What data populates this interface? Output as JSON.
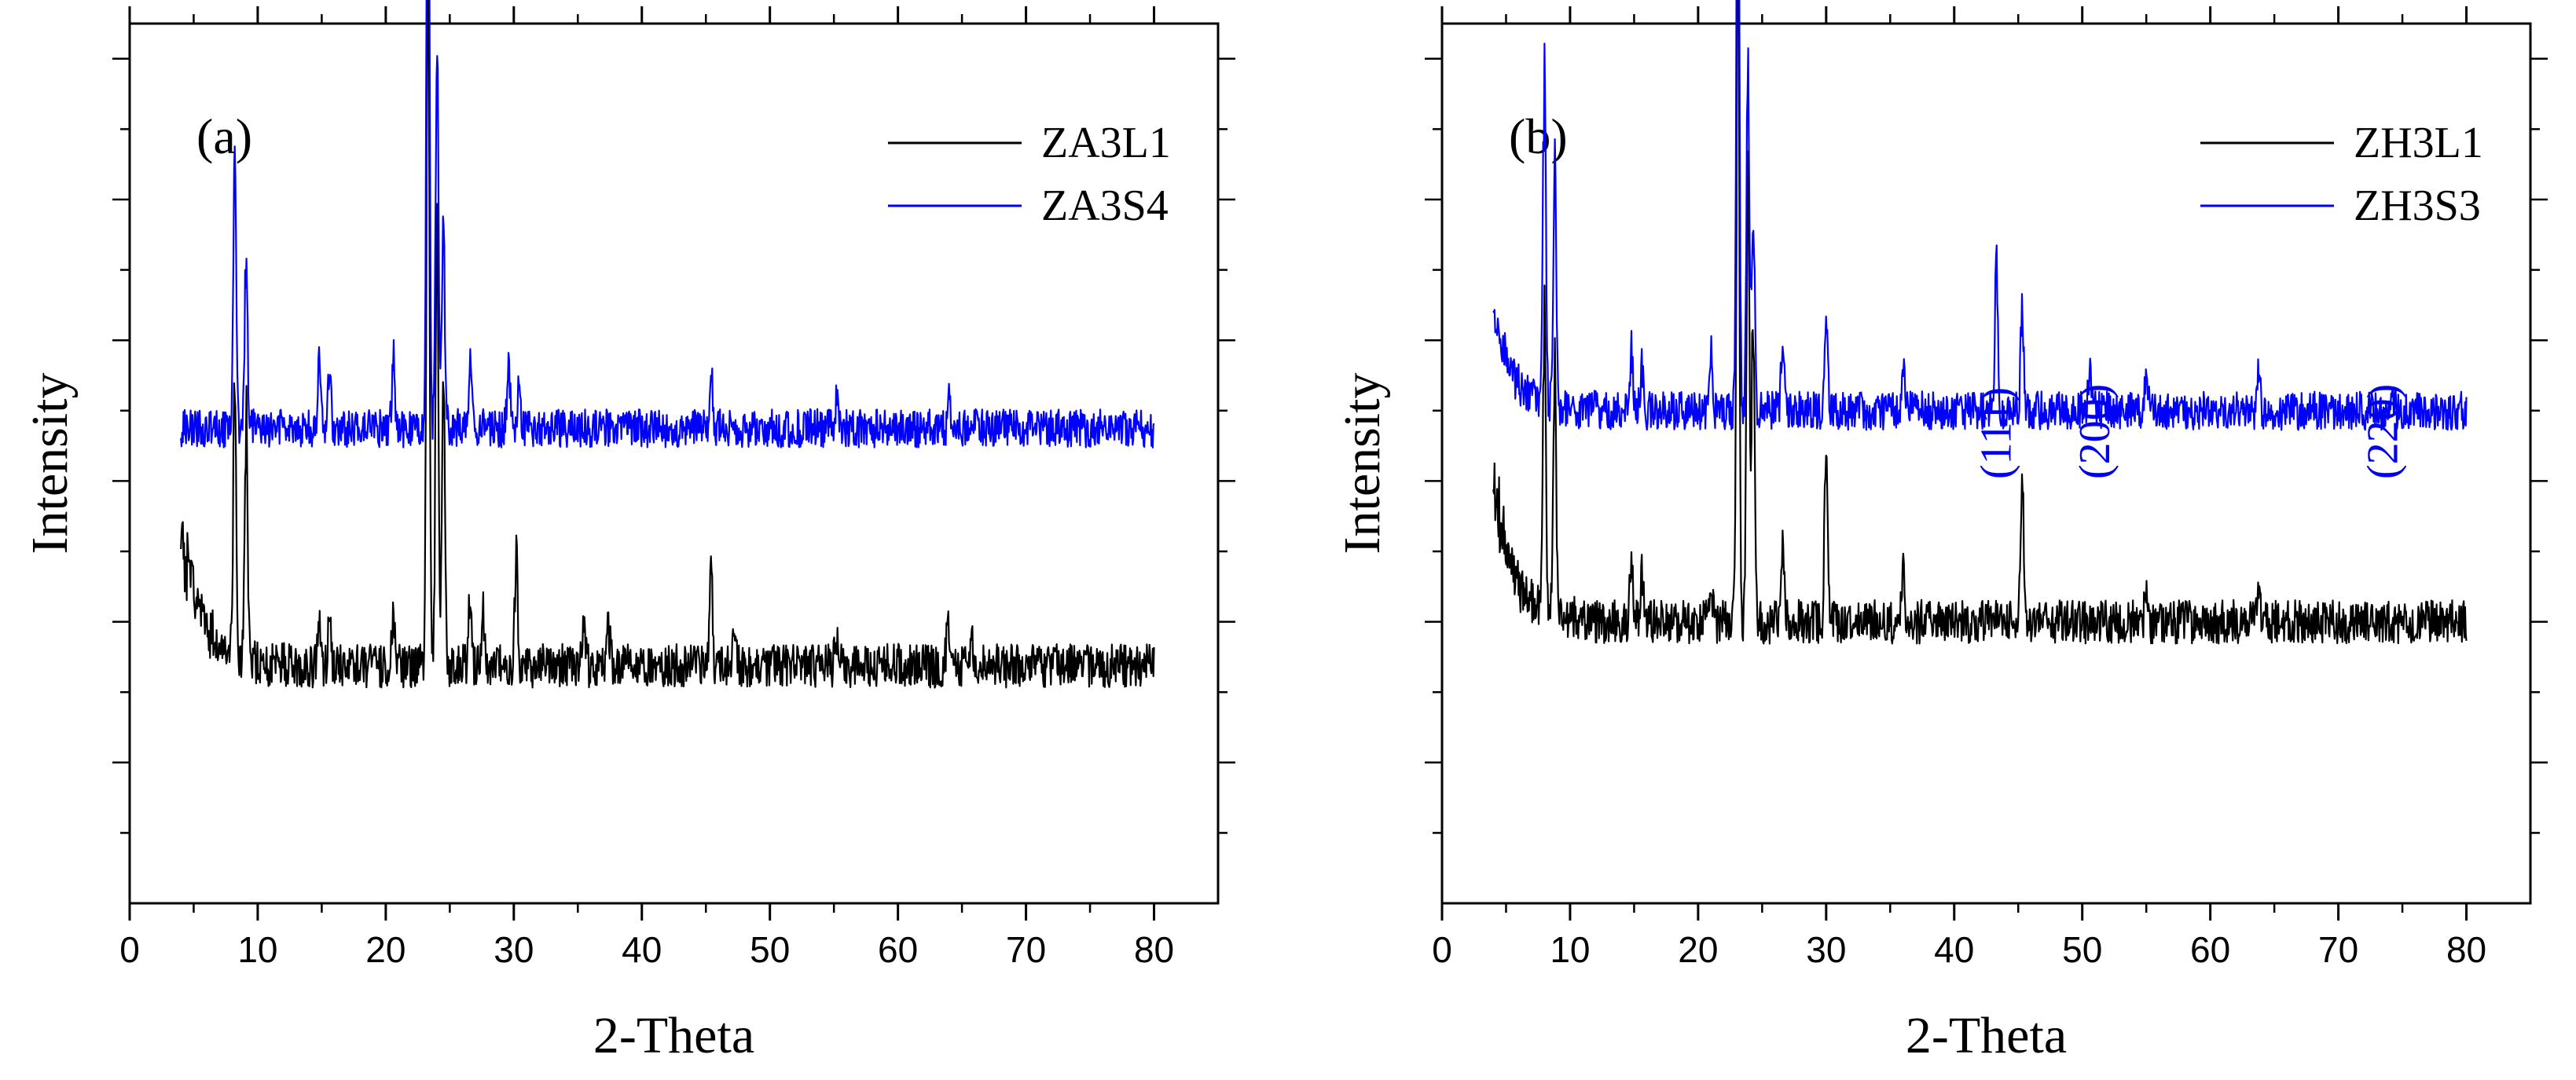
{
  "chart_data": [
    {
      "type": "line",
      "panel_label": "(a)",
      "xlabel": "2-Theta",
      "ylabel": "Intensity",
      "xlim": [
        0,
        85
      ],
      "xticks": [
        "0",
        "10",
        "20",
        "30",
        "40",
        "50",
        "60",
        "70",
        "80"
      ],
      "series": [
        {
          "name": "ZA3L1",
          "color": "#000000",
          "baseline": 0.27,
          "noise": 0.025,
          "start_rise": 0.16,
          "seed": 11,
          "peaks": [
            [
              8.2,
              0.3
            ],
            [
              9.1,
              0.27
            ],
            [
              14.8,
              0.05
            ],
            [
              15.6,
              0.05
            ],
            [
              20.6,
              0.06
            ],
            [
              23.3,
              0.9
            ],
            [
              24.0,
              0.48
            ],
            [
              24.5,
              0.33
            ],
            [
              26.6,
              0.08
            ],
            [
              27.6,
              0.06
            ],
            [
              30.2,
              0.12
            ],
            [
              35.5,
              0.05
            ],
            [
              37.4,
              0.04
            ],
            [
              45.4,
              0.13
            ],
            [
              47.2,
              0.03
            ],
            [
              55.2,
              0.04
            ],
            [
              63.9,
              0.05
            ],
            [
              65.8,
              0.03
            ]
          ]
        },
        {
          "name": "ZA3S4",
          "color": "#0000ff",
          "baseline": 0.54,
          "noise": 0.022,
          "start_rise": 0.0,
          "seed": 29,
          "peaks": [
            [
              8.2,
              0.29
            ],
            [
              9.1,
              0.19
            ],
            [
              14.8,
              0.08
            ],
            [
              15.6,
              0.06
            ],
            [
              20.6,
              0.07
            ],
            [
              23.3,
              0.79
            ],
            [
              24.0,
              0.43
            ],
            [
              24.5,
              0.24
            ],
            [
              26.6,
              0.08
            ],
            [
              29.6,
              0.08
            ],
            [
              30.4,
              0.05
            ],
            [
              45.4,
              0.07
            ],
            [
              55.2,
              0.03
            ],
            [
              64.0,
              0.03
            ]
          ]
        }
      ]
    },
    {
      "type": "line",
      "panel_label": "(b)",
      "xlabel": "2-Theta",
      "ylabel": "Intensity",
      "xlim": [
        0,
        85
      ],
      "xticks": [
        "0",
        "10",
        "20",
        "30",
        "40",
        "50",
        "60",
        "70",
        "80"
      ],
      "series": [
        {
          "name": "ZH3L1",
          "color": "#000000",
          "baseline": 0.32,
          "noise": 0.025,
          "start_rise": 0.16,
          "seed": 47,
          "peaks": [
            [
              8.0,
              0.33
            ],
            [
              8.8,
              0.31
            ],
            [
              14.8,
              0.08
            ],
            [
              15.6,
              0.06
            ],
            [
              21.0,
              0.05
            ],
            [
              23.1,
              0.76
            ],
            [
              23.9,
              0.53
            ],
            [
              24.3,
              0.35
            ],
            [
              26.6,
              0.1
            ],
            [
              30.0,
              0.22
            ],
            [
              36.0,
              0.06
            ],
            [
              45.3,
              0.17
            ],
            [
              55.0,
              0.04
            ],
            [
              63.8,
              0.05
            ]
          ]
        },
        {
          "name": "ZH3S3",
          "color": "#0000ff",
          "baseline": 0.56,
          "noise": 0.022,
          "start_rise": 0.11,
          "seed": 83,
          "peaks": [
            [
              8.0,
              0.39
            ],
            [
              8.8,
              0.28
            ],
            [
              14.8,
              0.07
            ],
            [
              15.6,
              0.05
            ],
            [
              21.0,
              0.07
            ],
            [
              23.1,
              0.78
            ],
            [
              23.9,
              0.38
            ],
            [
              24.3,
              0.25
            ],
            [
              26.6,
              0.08
            ],
            [
              30.0,
              0.12
            ],
            [
              36.0,
              0.06
            ],
            [
              43.3,
              0.18
            ],
            [
              45.3,
              0.12
            ],
            [
              50.6,
              0.05
            ],
            [
              55.0,
              0.04
            ],
            [
              63.8,
              0.05
            ],
            [
              74.2,
              0.03
            ]
          ]
        }
      ],
      "annotations": [
        {
          "text": "(111)",
          "x": 43.3
        },
        {
          "text": "(200)",
          "x": 51.0
        },
        {
          "text": "(220)",
          "x": 73.5
        }
      ]
    }
  ]
}
